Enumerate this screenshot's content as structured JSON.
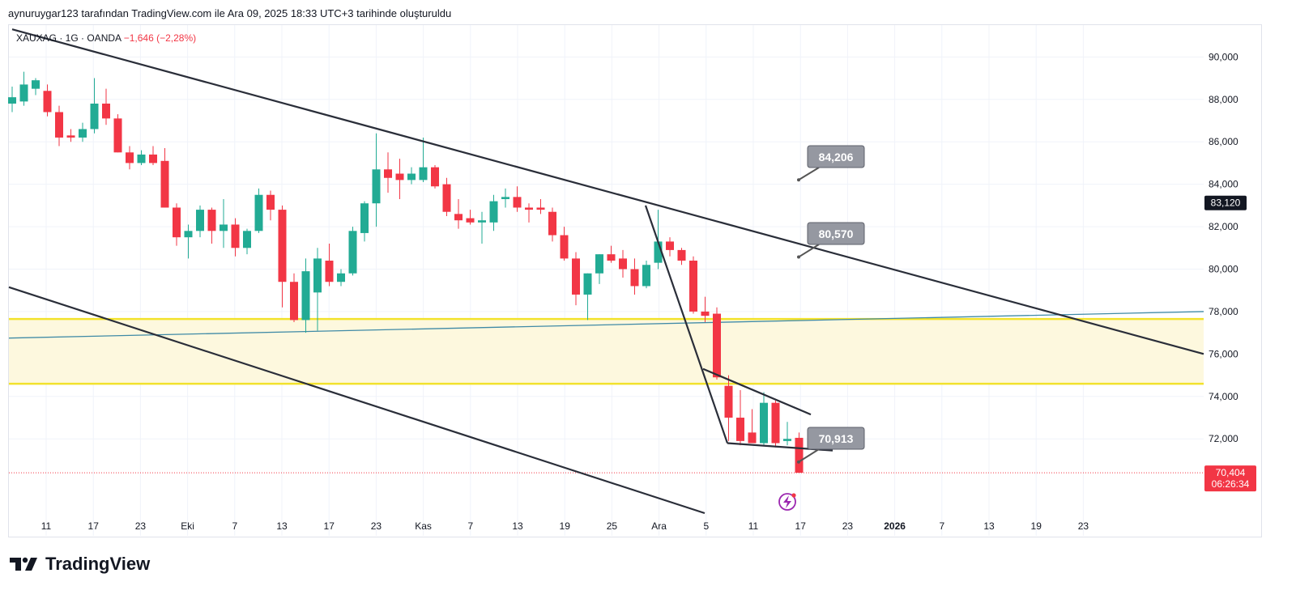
{
  "header": {
    "attribution": "aynuruygar123 tarafından TradingView.com ile Ara 09, 2025 18:33 UTC+3 tarihinde oluşturuldu"
  },
  "legend": {
    "symbol": "XAUXAG · 1G · OANDA",
    "change": "−1,646 (−2,28%)"
  },
  "brand": {
    "name": "TradingView",
    "logo_icon": "tradingview-logo-icon"
  },
  "colors": {
    "up": "#22ab94",
    "down": "#f23645",
    "trendline": "#2a2e39",
    "zone_fill": "#fdf8de",
    "zone_border": "#f2e22c",
    "blue_line": "#3f8aa6",
    "callout": "#9598a1"
  },
  "chart_data": {
    "type": "candlestick",
    "y_range": [
      68500,
      91500
    ],
    "y_ticks": [
      {
        "value": 90000,
        "label": "90,000"
      },
      {
        "value": 88000,
        "label": "88,000"
      },
      {
        "value": 86000,
        "label": "86,000"
      },
      {
        "value": 84000,
        "label": "84,000"
      },
      {
        "value": 82000,
        "label": "82,000"
      },
      {
        "value": 80000,
        "label": "80,000"
      },
      {
        "value": 78000,
        "label": "78,000"
      },
      {
        "value": 76000,
        "label": "76,000"
      },
      {
        "value": 74000,
        "label": "74,000"
      },
      {
        "value": 72000,
        "label": "72,000"
      }
    ],
    "x_ticks": [
      {
        "label": "11",
        "bold": false
      },
      {
        "label": "17",
        "bold": false
      },
      {
        "label": "23",
        "bold": false
      },
      {
        "label": "Eki",
        "bold": false
      },
      {
        "label": "7",
        "bold": false
      },
      {
        "label": "13",
        "bold": false
      },
      {
        "label": "17",
        "bold": false
      },
      {
        "label": "23",
        "bold": false
      },
      {
        "label": "Kas",
        "bold": false
      },
      {
        "label": "7",
        "bold": false
      },
      {
        "label": "13",
        "bold": false
      },
      {
        "label": "19",
        "bold": false
      },
      {
        "label": "25",
        "bold": false
      },
      {
        "label": "Ara",
        "bold": false
      },
      {
        "label": "5",
        "bold": false
      },
      {
        "label": "11",
        "bold": false
      },
      {
        "label": "17",
        "bold": false
      },
      {
        "label": "23",
        "bold": false
      },
      {
        "label": "2026",
        "bold": true
      },
      {
        "label": "7",
        "bold": false
      },
      {
        "label": "13",
        "bold": false
      },
      {
        "label": "19",
        "bold": false
      },
      {
        "label": "23",
        "bold": false
      }
    ],
    "candles": [
      {
        "o": 87800,
        "h": 88600,
        "l": 87400,
        "c": 88100
      },
      {
        "o": 87900,
        "h": 89300,
        "l": 87700,
        "c": 88700
      },
      {
        "o": 88500,
        "h": 89000,
        "l": 88200,
        "c": 88900
      },
      {
        "o": 88400,
        "h": 88700,
        "l": 87200,
        "c": 87400
      },
      {
        "o": 87400,
        "h": 87700,
        "l": 85800,
        "c": 86200
      },
      {
        "o": 86300,
        "h": 86600,
        "l": 86000,
        "c": 86200
      },
      {
        "o": 86200,
        "h": 86900,
        "l": 86000,
        "c": 86600
      },
      {
        "o": 86600,
        "h": 89000,
        "l": 86400,
        "c": 87800
      },
      {
        "o": 87800,
        "h": 88500,
        "l": 86800,
        "c": 87100
      },
      {
        "o": 87100,
        "h": 87300,
        "l": 85500,
        "c": 85500
      },
      {
        "o": 85500,
        "h": 85800,
        "l": 84700,
        "c": 85000
      },
      {
        "o": 85000,
        "h": 85600,
        "l": 84900,
        "c": 85400
      },
      {
        "o": 85400,
        "h": 85800,
        "l": 84900,
        "c": 85000
      },
      {
        "o": 85100,
        "h": 85700,
        "l": 82900,
        "c": 82900
      },
      {
        "o": 82900,
        "h": 83100,
        "l": 81100,
        "c": 81500
      },
      {
        "o": 81500,
        "h": 82100,
        "l": 80500,
        "c": 81800
      },
      {
        "o": 81800,
        "h": 83000,
        "l": 81500,
        "c": 82800
      },
      {
        "o": 82800,
        "h": 82900,
        "l": 81200,
        "c": 81800
      },
      {
        "o": 81800,
        "h": 83300,
        "l": 81000,
        "c": 82100
      },
      {
        "o": 82100,
        "h": 82400,
        "l": 80600,
        "c": 81000
      },
      {
        "o": 81000,
        "h": 81900,
        "l": 80700,
        "c": 81800
      },
      {
        "o": 81800,
        "h": 83800,
        "l": 81700,
        "c": 83500
      },
      {
        "o": 83500,
        "h": 83700,
        "l": 82300,
        "c": 82800
      },
      {
        "o": 82800,
        "h": 83000,
        "l": 78200,
        "c": 79400
      },
      {
        "o": 79400,
        "h": 79800,
        "l": 77500,
        "c": 77600
      },
      {
        "o": 77600,
        "h": 80500,
        "l": 77000,
        "c": 79900
      },
      {
        "o": 78900,
        "h": 81000,
        "l": 77100,
        "c": 80500
      },
      {
        "o": 80400,
        "h": 81200,
        "l": 79200,
        "c": 79400
      },
      {
        "o": 79400,
        "h": 80000,
        "l": 79200,
        "c": 79800
      },
      {
        "o": 79800,
        "h": 82000,
        "l": 79700,
        "c": 81800
      },
      {
        "o": 81700,
        "h": 83200,
        "l": 81300,
        "c": 83100
      },
      {
        "o": 83100,
        "h": 86400,
        "l": 82000,
        "c": 84700
      },
      {
        "o": 84700,
        "h": 85500,
        "l": 83600,
        "c": 84300
      },
      {
        "o": 84500,
        "h": 85200,
        "l": 83300,
        "c": 84200
      },
      {
        "o": 84200,
        "h": 84800,
        "l": 84000,
        "c": 84500
      },
      {
        "o": 84200,
        "h": 86200,
        "l": 84100,
        "c": 84800
      },
      {
        "o": 84800,
        "h": 84900,
        "l": 83800,
        "c": 83900
      },
      {
        "o": 84000,
        "h": 84300,
        "l": 82500,
        "c": 82700
      },
      {
        "o": 82600,
        "h": 83300,
        "l": 81900,
        "c": 82300
      },
      {
        "o": 82400,
        "h": 82800,
        "l": 82100,
        "c": 82200
      },
      {
        "o": 82200,
        "h": 82700,
        "l": 81200,
        "c": 82300
      },
      {
        "o": 82200,
        "h": 83500,
        "l": 81800,
        "c": 83200
      },
      {
        "o": 83300,
        "h": 83800,
        "l": 82900,
        "c": 83400
      },
      {
        "o": 83400,
        "h": 83900,
        "l": 82700,
        "c": 82900
      },
      {
        "o": 82900,
        "h": 83100,
        "l": 82200,
        "c": 82800
      },
      {
        "o": 82900,
        "h": 83300,
        "l": 82600,
        "c": 82800
      },
      {
        "o": 82700,
        "h": 82900,
        "l": 81300,
        "c": 81600
      },
      {
        "o": 81600,
        "h": 82000,
        "l": 80400,
        "c": 80500
      },
      {
        "o": 80500,
        "h": 80800,
        "l": 78300,
        "c": 78800
      },
      {
        "o": 78800,
        "h": 79800,
        "l": 77600,
        "c": 79800
      },
      {
        "o": 79800,
        "h": 80700,
        "l": 79300,
        "c": 80700
      },
      {
        "o": 80700,
        "h": 81100,
        "l": 80300,
        "c": 80400
      },
      {
        "o": 80500,
        "h": 80900,
        "l": 79600,
        "c": 80000
      },
      {
        "o": 80000,
        "h": 80500,
        "l": 78800,
        "c": 79200
      },
      {
        "o": 79200,
        "h": 80400,
        "l": 79100,
        "c": 80200
      },
      {
        "o": 80300,
        "h": 82800,
        "l": 80000,
        "c": 81300
      },
      {
        "o": 81300,
        "h": 81500,
        "l": 80600,
        "c": 80900
      },
      {
        "o": 80900,
        "h": 81000,
        "l": 80200,
        "c": 80400
      },
      {
        "o": 80400,
        "h": 80600,
        "l": 77900,
        "c": 78000
      },
      {
        "o": 78000,
        "h": 78700,
        "l": 77500,
        "c": 77800
      },
      {
        "o": 77900,
        "h": 78200,
        "l": 74800,
        "c": 74900
      },
      {
        "o": 74500,
        "h": 75000,
        "l": 71900,
        "c": 73000
      },
      {
        "o": 73000,
        "h": 74300,
        "l": 71700,
        "c": 71900
      },
      {
        "o": 72300,
        "h": 73400,
        "l": 71800,
        "c": 71800
      },
      {
        "o": 71800,
        "h": 74200,
        "l": 71700,
        "c": 73700
      },
      {
        "o": 73700,
        "h": 73800,
        "l": 71600,
        "c": 71800
      },
      {
        "o": 71900,
        "h": 72800,
        "l": 71700,
        "c": 72000
      },
      {
        "o": 72050,
        "h": 72300,
        "l": 70404,
        "c": 70404
      }
    ],
    "current_price": {
      "value": 70404,
      "label": "70,404",
      "timer": "06:26:34"
    },
    "marker_price": {
      "value": 83120,
      "label": "83,120"
    },
    "callouts": [
      {
        "label": "84,206",
        "value": 84206
      },
      {
        "label": "80,570",
        "value": 80570
      },
      {
        "label": "70,913",
        "value": 70913
      }
    ],
    "zone": {
      "top": 77650,
      "bottom": 74600
    },
    "lightning_icon": "lightning-icon"
  }
}
